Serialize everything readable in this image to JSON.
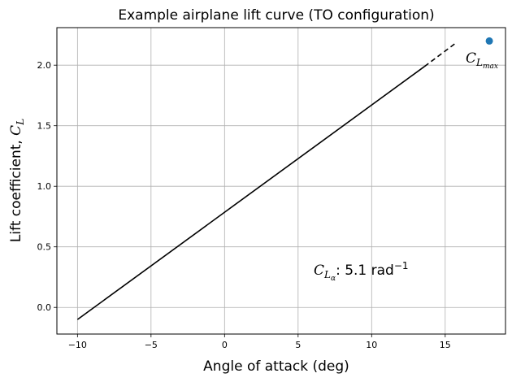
{
  "chart_data": {
    "type": "line",
    "title": "Example airplane lift curve (TO configuration)",
    "xlabel": "Angle of attack (deg)",
    "ylabel": "Lift coefficient, ",
    "ylabel_symbol": "C",
    "ylabel_symbol_sub": "L",
    "xlim": [
      -11.4,
      19.1
    ],
    "ylim": [
      -0.22,
      2.31
    ],
    "x_ticks": [
      -10,
      -5,
      0,
      5,
      10,
      15
    ],
    "x_tick_labels": [
      "−10",
      "−5",
      "0",
      "5",
      "10",
      "15"
    ],
    "y_ticks": [
      0.0,
      0.5,
      1.0,
      1.5,
      2.0
    ],
    "y_tick_labels": [
      "0.0",
      "0.5",
      "1.0",
      "1.5",
      "2.0"
    ],
    "grid": true,
    "series": [
      {
        "style": "solid",
        "color": "#000000",
        "x": [
          -10,
          13.6
        ],
        "y": [
          -0.1,
          1.99
        ]
      },
      {
        "style": "dashed",
        "color": "#000000",
        "x": [
          13.6,
          15.8
        ],
        "y": [
          1.99,
          2.19
        ]
      },
      {
        "style": "marker",
        "color": "#1f77b4",
        "x": [
          18.0
        ],
        "y": [
          2.2
        ]
      }
    ],
    "annotations": {
      "clmax": {
        "symbol": "C",
        "sub": "L",
        "subsub": "max"
      },
      "cla": {
        "symbol": "C",
        "sub": "L",
        "subsub": "α",
        "text": ": 5.1 rad",
        "sup": "−1"
      }
    }
  }
}
